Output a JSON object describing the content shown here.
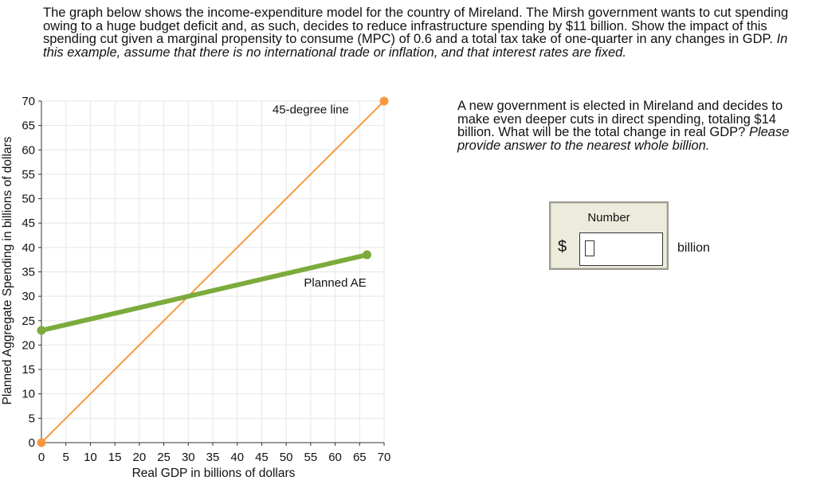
{
  "question": {
    "text": "The graph below shows the income-expenditure model for the country of Mireland. The Mirsh government wants to cut spending owing to a huge budget deficit and, as such, decides to reduce infrastructure spending by $11 billion. Show the impact of this spending cut given a marginal propensity to consume (MPC) of 0.6 and a total tax take of one-quarter in any changes in GDP.",
    "italic": "In this example, assume that there is no international trade or inflation, and that interest rates are fixed."
  },
  "side_question": {
    "text": "A new government is elected in Mireland and decides to make even deeper cuts in direct spending, totaling $14 billion. What will be the total change in real GDP?",
    "italic": "Please provide answer to the nearest whole billion."
  },
  "answer": {
    "label": "Number",
    "currency": "$",
    "value": "",
    "unit": "billion"
  },
  "chart_data": {
    "type": "line",
    "title": "",
    "xlabel": "Real GDP in billions of dollars",
    "ylabel": "Planned Aggregate Spending in billions of dollars",
    "xlim": [
      0,
      70
    ],
    "ylim": [
      0,
      70
    ],
    "xticks": [
      0,
      5,
      10,
      15,
      20,
      25,
      30,
      35,
      40,
      45,
      50,
      55,
      60,
      65,
      70
    ],
    "yticks": [
      0,
      5,
      10,
      15,
      20,
      25,
      30,
      35,
      40,
      45,
      50,
      55,
      60,
      65,
      70
    ],
    "grid": true,
    "series": [
      {
        "name": "45-degree line",
        "color": "#f79a3e",
        "points": [
          [
            0,
            0
          ],
          [
            70,
            70
          ]
        ]
      },
      {
        "name": "Planned AE",
        "color": "#7cab3c",
        "points": [
          [
            0,
            23
          ],
          [
            66.5,
            38.5
          ]
        ]
      }
    ],
    "annotations": [
      {
        "text": "45-degree line",
        "x": 55,
        "y": 67.5
      },
      {
        "text": "Planned AE",
        "x": 60,
        "y": 32
      }
    ]
  }
}
